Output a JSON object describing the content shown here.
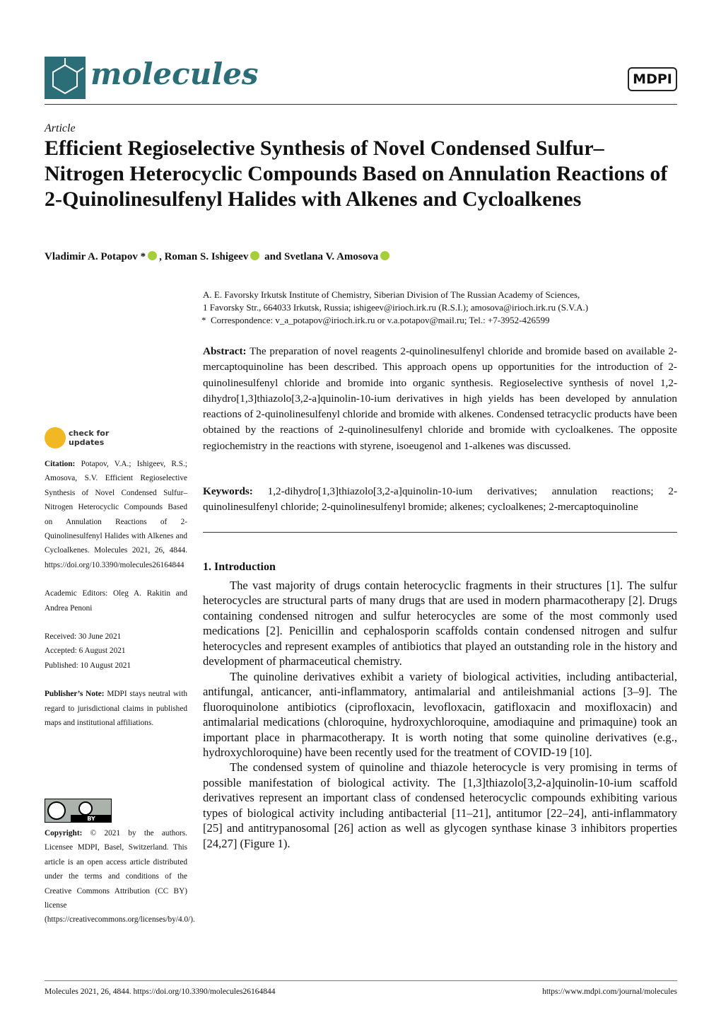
{
  "header": {
    "journal": "molecules",
    "publisher": "MDPI"
  },
  "article_type": "Article",
  "title": "Efficient Regioselective Synthesis of Novel Condensed Sulfur–Nitrogen Heterocyclic Compounds Based on Annulation Reactions of 2-Quinolinesulfenyl Halides with Alkenes and Cycloalkenes",
  "authors": {
    "names": [
      "Vladimir A. Potapov *",
      "Roman S. Ishigeev",
      "Svetlana V. Amosova"
    ],
    "separators": [
      ",",
      "and"
    ]
  },
  "affiliation": {
    "lines": [
      "A. E. Favorsky Irkutsk Institute of Chemistry, Siberian Division of The Russian Academy of Sciences,",
      "1 Favorsky Str., 664033 Irkutsk, Russia; ishigeev@irioch.irk.ru (R.S.I.); amosova@irioch.irk.ru (S.V.A.)"
    ],
    "correspondence_marker": "*",
    "correspondence": "Correspondence: v_a_potapov@irioch.irk.ru or v.a.potapov@mail.ru; Tel.: +7-3952-426599"
  },
  "abstract": {
    "label": "Abstract:",
    "text": "The preparation of novel reagents 2-quinolinesulfenyl chloride and bromide based on available 2-mercaptoquinoline has been described. This approach opens up opportunities for the introduction of 2-quinolinesulfenyl chloride and bromide into organic synthesis. Regioselective synthesis of novel 1,2-dihydro[1,3]thiazolo[3,2-a]quinolin-10-ium derivatives in high yields has been developed by annulation reactions of 2-quinolinesulfenyl chloride and bromide with alkenes. Condensed tetracyclic products have been obtained by the reactions of 2-quinolinesulfenyl chloride and bromide with cycloalkenes. The opposite regiochemistry in the reactions with styrene, isoeugenol and 1-alkenes was discussed."
  },
  "keywords": {
    "label": "Keywords:",
    "text": "1,2-dihydro[1,3]thiazolo[3,2-a]quinolin-10-ium derivatives; annulation reactions; 2-quinolinesulfenyl chloride; 2-quinolinesulfenyl bromide; alkenes; cycloalkenes; 2-mercaptoquinoline"
  },
  "sidebar": {
    "updates_badge": [
      "check for",
      "updates"
    ],
    "citation_label": "Citation:",
    "citation": "Potapov, V.A.; Ishigeev, R.S.; Amosova, S.V. Efficient Regioselective Synthesis of Novel Condensed Sulfur–Nitrogen Heterocyclic Compounds Based on Annulation Reactions of 2-Quinolinesulfenyl Halides with Alkenes and Cycloalkenes. Molecules 2021, 26, 4844. https://doi.org/10.3390/molecules26164844",
    "editors": "Academic Editors: Oleg A. Rakitin and Andrea Penoni",
    "dates": [
      "Received: 30 June 2021",
      "Accepted: 6 August 2021",
      "Published: 10 August 2021"
    ],
    "publisher_note_label": "Publisher’s Note:",
    "publisher_note": "MDPI stays neutral with regard to jurisdictional claims in published maps and institutional affiliations.",
    "license_badge": "BY",
    "copyright_label": "Copyright:",
    "copyright": "© 2021 by the authors. Licensee MDPI, Basel, Switzerland. This article is an open access article distributed under the terms and conditions of the Creative Commons Attribution (CC BY) license (https://creativecommons.org/licenses/by/4.0/)."
  },
  "section": {
    "heading": "1. Introduction",
    "paragraphs": [
      "The vast majority of drugs contain heterocyclic fragments in their structures [1]. The sulfur heterocycles are structural parts of many drugs that are used in modern pharmacotherapy [2]. Drugs containing condensed nitrogen and sulfur heterocycles are some of the most commonly used medications [2]. Penicillin and cephalosporin scaffolds contain condensed nitrogen and sulfur heterocycles and represent examples of antibiotics that played an outstanding role in the history and development of pharmaceutical chemistry.",
      "The quinoline derivatives exhibit a variety of biological activities, including antibacterial, antifungal, anticancer, anti-inflammatory, antimalarial and antileishmanial actions [3–9]. The fluoroquinolone antibiotics (ciprofloxacin, levofloxacin, gatifloxacin and moxifloxacin) and antimalarial medications (chloroquine, hydroxychloroquine, amodiaquine and primaquine) took an important place in pharmacotherapy. It is worth noting that some quinoline derivatives (e.g., hydroxychloroquine) have been recently used for the treatment of COVID-19 [10].",
      "The condensed system of quinoline and thiazole heterocycle is very promising in terms of possible manifestation of biological activity. The [1,3]thiazolo[3,2-a]quinolin-10-ium scaffold derivatives represent an important class of condensed heterocyclic compounds exhibiting various types of biological activity including antibacterial [11–21], antitumor [22–24], anti-inflammatory [25] and antitrypanosomal [26] action as well as glycogen synthase kinase 3 inhibitors properties [24,27] (Figure 1)."
    ]
  },
  "footer": {
    "citation": "Molecules 2021, 26, 4844. https://doi.org/10.3390/molecules26164844",
    "url": "https://www.mdpi.com/journal/molecules"
  }
}
